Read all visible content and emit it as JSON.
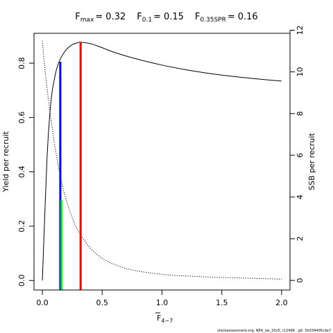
{
  "chart_data": {
    "type": "line",
    "title": {
      "fmax": {
        "name": "F",
        "sub": "max",
        "value": "0.32"
      },
      "f01": {
        "name": "F",
        "sub": "0.1",
        "value": "0.15"
      },
      "f35": {
        "name": "F",
        "sub": "0.35SPR",
        "value": "0.16"
      }
    },
    "xlabel": {
      "main": "F",
      "sub": "4−7"
    },
    "ylabel": "Yield per recruit",
    "y2label": "SSB per recruit",
    "xlim": [
      -0.07,
      2.07
    ],
    "ylim": [
      -0.035,
      0.91
    ],
    "y2lim": [
      -0.46,
      11.85
    ],
    "xticks": [
      "0.0",
      "0.5",
      "1.0",
      "1.5",
      "2.0"
    ],
    "yticks": [
      "0.0",
      "0.2",
      "0.4",
      "0.6",
      "0.8"
    ],
    "y2ticks": [
      "0",
      "2",
      "4",
      "6",
      "8",
      "10",
      "12"
    ],
    "series": [
      {
        "axis": "left",
        "style": "solid",
        "x": [
          0,
          0.02,
          0.04,
          0.06,
          0.08,
          0.1,
          0.12,
          0.15,
          0.2,
          0.25,
          0.3,
          0.32,
          0.4,
          0.5,
          0.6,
          0.75,
          1.0,
          1.25,
          1.5,
          1.75,
          2.0
        ],
        "y": [
          0.0,
          0.24,
          0.46,
          0.6,
          0.69,
          0.74,
          0.78,
          0.815,
          0.85,
          0.868,
          0.876,
          0.877,
          0.872,
          0.857,
          0.84,
          0.82,
          0.793,
          0.772,
          0.756,
          0.744,
          0.734
        ]
      },
      {
        "axis": "right",
        "style": "dotted",
        "x": [
          0,
          0.02,
          0.05,
          0.1,
          0.15,
          0.2,
          0.25,
          0.3,
          0.4,
          0.5,
          0.6,
          0.75,
          1.0,
          1.25,
          1.5,
          1.75,
          2.0
        ],
        "y": [
          11.5,
          10.2,
          8.7,
          6.6,
          5.0,
          3.85,
          3.0,
          2.37,
          1.55,
          1.06,
          0.77,
          0.5,
          0.29,
          0.2,
          0.14,
          0.1,
          0.06
        ]
      }
    ],
    "reference_lines": [
      {
        "x": 0.15,
        "y_top": 0.805,
        "color": "#0000ff"
      },
      {
        "x": 0.16,
        "y_top": 0.295,
        "color": "#00ee00"
      },
      {
        "x": 0.32,
        "y_top": 0.877,
        "color": "#ff0000"
      }
    ],
    "credit": "stockassessment.org, NEA_sai_20v5, r12498 , git: 5b334405cda7"
  }
}
